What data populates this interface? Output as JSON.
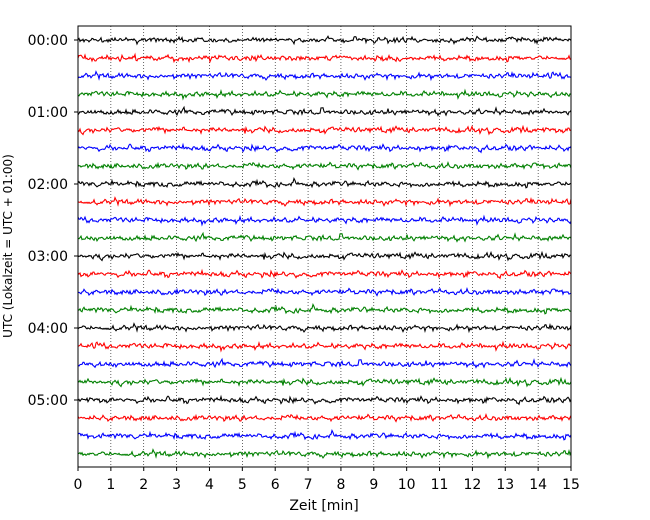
{
  "chart_data": {
    "type": "line",
    "xlabel": "Zeit  [min]",
    "ylabel": "UTC (Lokalzeit = UTC + 01:00)",
    "xlim": [
      0,
      15
    ],
    "x_ticks": [
      0,
      1,
      2,
      3,
      4,
      5,
      6,
      7,
      8,
      9,
      10,
      11,
      12,
      13,
      14,
      15
    ],
    "x_tick_labels": [
      "0",
      "1",
      "2",
      "3",
      "4",
      "5",
      "6",
      "7",
      "8",
      "9",
      "10",
      "11",
      "12",
      "13",
      "14",
      "15"
    ],
    "y_tick_labels": [
      "00:00",
      "01:00",
      "02:00",
      "03:00",
      "04:00",
      "05:00"
    ],
    "grid": "vertical dotted",
    "traces_per_hour": 4,
    "trace_count": 24,
    "trace_interval_min": 15,
    "trace_colors": [
      "#000000",
      "#ff0000",
      "#0000ff",
      "#008000"
    ],
    "noise_amplitude_rel": 0.12
  }
}
